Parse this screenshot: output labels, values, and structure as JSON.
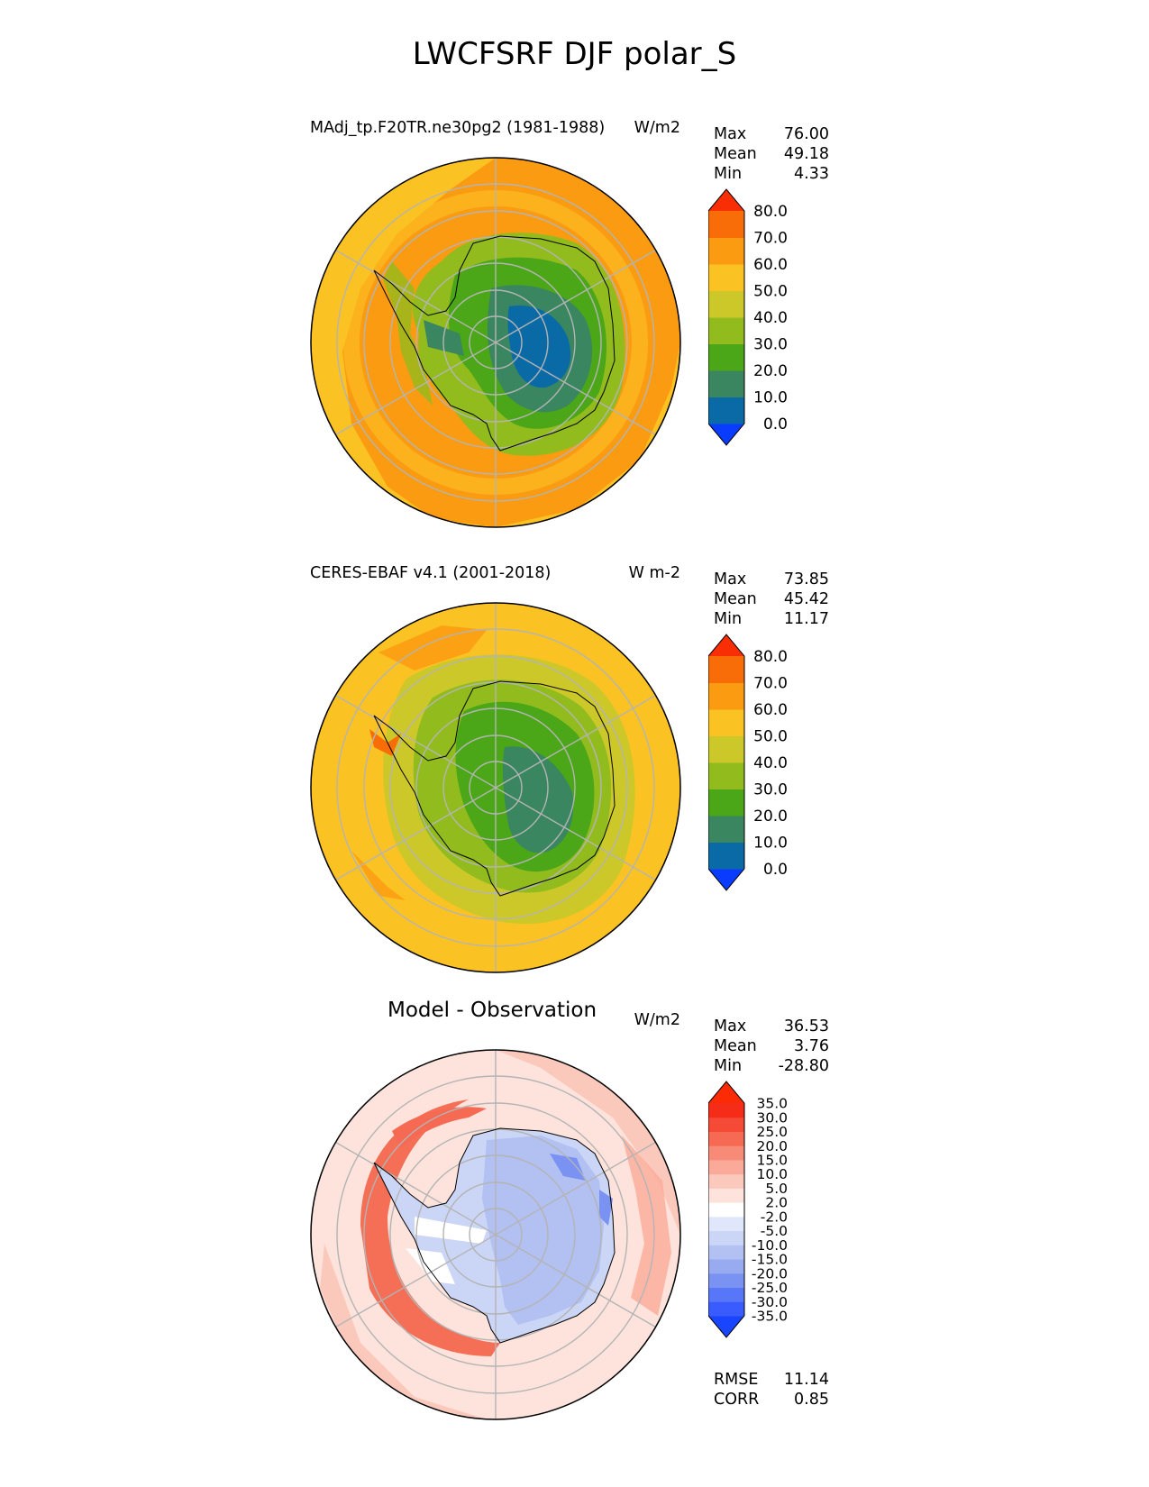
{
  "figure": {
    "title": "LWCFSRF DJF polar_S"
  },
  "panels": [
    {
      "title_left": "MAdj_tp.F20TR.ne30pg2 (1981-1988)",
      "title_right": "W/m2",
      "stats": [
        {
          "label": "Max",
          "value": "76.00"
        },
        {
          "label": "Mean",
          "value": "49.18"
        },
        {
          "label": "Min",
          "value": "4.33"
        }
      ]
    },
    {
      "title_left": "CERES-EBAF v4.1 (2001-2018)",
      "title_right": "W m-2",
      "stats": [
        {
          "label": "Max",
          "value": "73.85"
        },
        {
          "label": "Mean",
          "value": "45.42"
        },
        {
          "label": "Min",
          "value": "11.17"
        }
      ]
    },
    {
      "title_center": "Model - Observation",
      "title_right": "W/m2",
      "stats": [
        {
          "label": "Max",
          "value": "36.53"
        },
        {
          "label": "Mean",
          "value": "3.76"
        },
        {
          "label": "Min",
          "value": "-28.80"
        }
      ],
      "extra_stats": [
        {
          "label": "RMSE",
          "value": "11.14"
        },
        {
          "label": "CORR",
          "value": "0.85"
        }
      ]
    }
  ],
  "colorbars": {
    "main": {
      "levels": [
        "0.0",
        "10.0",
        "20.0",
        "30.0",
        "40.0",
        "50.0",
        "60.0",
        "70.0",
        "80.0"
      ],
      "colors": [
        "#0a3cff",
        "#0a6aa6",
        "#3a8660",
        "#4ba618",
        "#92bc1e",
        "#cdc82a",
        "#fbc223",
        "#fb9b12",
        "#f96d08",
        "#fa2e05"
      ]
    },
    "diff": {
      "levels": [
        "-35.0",
        "-30.0",
        "-25.0",
        "-20.0",
        "-15.0",
        "-10.0",
        "-5.0",
        "-2.0",
        "2.0",
        "5.0",
        "10.0",
        "15.0",
        "20.0",
        "25.0",
        "30.0",
        "35.0"
      ],
      "colors": [
        "#1a45ff",
        "#3a5cff",
        "#5776f8",
        "#7a92f2",
        "#98aaf0",
        "#b2c0f2",
        "#cbd6f6",
        "#e1e7fa",
        "#ffffff",
        "#fde3dc",
        "#fbc9bc",
        "#fbaa99",
        "#f88b77",
        "#f66a54",
        "#f54a35",
        "#f52d18",
        "#fa2b05"
      ]
    },
    "map_colors": {
      "ocean_orange": "#fb9b12",
      "ocean_yellow": "#fbc223",
      "grid": "#b4b4b4",
      "diff_red": "#f25a3e",
      "diff_pink": "#fbc9bc",
      "diff_blue": "#b2c0f2"
    }
  },
  "chart_data": [
    {
      "type": "heatmap",
      "projection": "south polar stereographic",
      "title": "MAdj_tp.F20TR.ne30pg2 (1981-1988)",
      "units": "W/m2",
      "stats": {
        "max": 76.0,
        "mean": 49.18,
        "min": 4.33
      },
      "colorbar_levels": [
        0,
        10,
        20,
        30,
        40,
        50,
        60,
        70,
        80
      ],
      "colorbar_extend": "both"
    },
    {
      "type": "heatmap",
      "projection": "south polar stereographic",
      "title": "CERES-EBAF v4.1 (2001-2018)",
      "units": "W m-2",
      "stats": {
        "max": 73.85,
        "mean": 45.42,
        "min": 11.17
      },
      "colorbar_levels": [
        0,
        10,
        20,
        30,
        40,
        50,
        60,
        70,
        80
      ],
      "colorbar_extend": "both"
    },
    {
      "type": "heatmap",
      "projection": "south polar stereographic",
      "title": "Model - Observation",
      "units": "W/m2",
      "stats": {
        "max": 36.53,
        "mean": 3.76,
        "min": -28.8,
        "rmse": 11.14,
        "corr": 0.85
      },
      "colorbar_levels": [
        -35,
        -30,
        -25,
        -20,
        -15,
        -10,
        -5,
        -2,
        2,
        5,
        10,
        15,
        20,
        25,
        30,
        35
      ],
      "colorbar_extend": "both"
    }
  ]
}
